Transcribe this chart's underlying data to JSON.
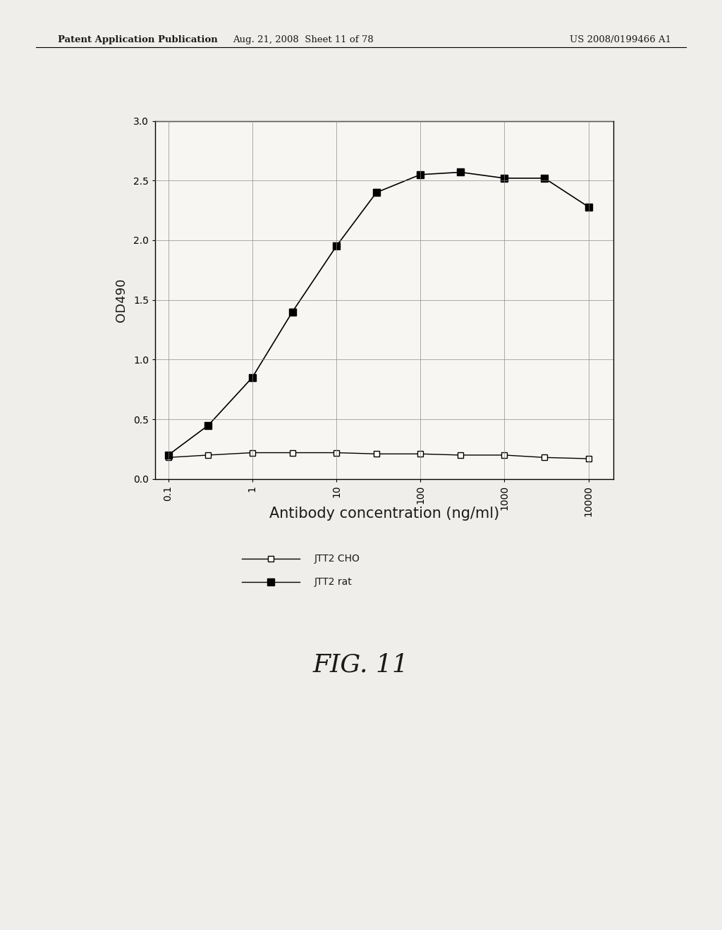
{
  "header_left": "Patent Application Publication",
  "header_mid": "Aug. 21, 2008  Sheet 11 of 78",
  "header_right": "US 2008/0199466 A1",
  "fig_label": "FIG. 11",
  "xlabel": "Antibody concentration (ng/ml)",
  "ylabel": "OD490",
  "ylim": [
    0,
    3
  ],
  "yticks": [
    0,
    0.5,
    1,
    1.5,
    2,
    2.5,
    3
  ],
  "x_values": [
    0.1,
    0.3,
    1,
    3,
    10,
    30,
    100,
    300,
    1000,
    3000,
    10000
  ],
  "cho_values": [
    0.18,
    0.2,
    0.22,
    0.22,
    0.22,
    0.21,
    0.21,
    0.2,
    0.2,
    0.18,
    0.17
  ],
  "rat_values": [
    0.2,
    0.45,
    0.85,
    1.4,
    1.95,
    2.4,
    2.55,
    2.57,
    2.52,
    2.52,
    2.28
  ],
  "cho_label": "JTT2 CHO",
  "rat_label": "JTT2 rat",
  "background_color": "#f0eeeb",
  "plot_bg_color": "#f8f6f3",
  "grid_color": "#888888",
  "text_color": "#1a1a1a"
}
